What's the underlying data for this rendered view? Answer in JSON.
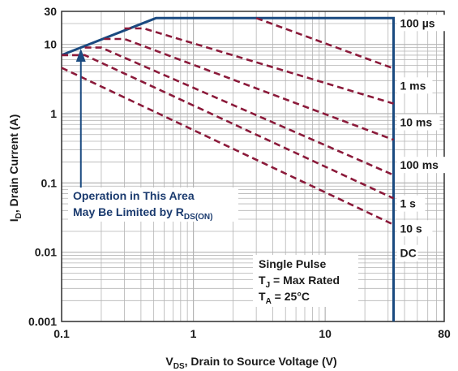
{
  "chart_data": {
    "type": "line",
    "xlabel": {
      "main": "V",
      "sub": "DS",
      "rest": ", Drain to Source Voltage (V)"
    },
    "ylabel": {
      "main": "I",
      "sub": "D",
      "rest": ", Drain Current (A)"
    },
    "x_scale": "log",
    "y_scale": "log",
    "xlim": [
      0.1,
      80
    ],
    "ylim": [
      0.001,
      30
    ],
    "x_ticks": [
      {
        "value": 0.1,
        "label": "0.1"
      },
      {
        "value": 1,
        "label": "1"
      },
      {
        "value": 10,
        "label": "10"
      },
      {
        "value": 80,
        "label": "80"
      }
    ],
    "y_ticks": [
      {
        "value": 0.001,
        "label": "0.001"
      },
      {
        "value": 0.01,
        "label": "0.01"
      },
      {
        "value": 0.1,
        "label": "0.1"
      },
      {
        "value": 1,
        "label": "1"
      },
      {
        "value": 10,
        "label": "10"
      },
      {
        "value": 30,
        "label": "30"
      }
    ],
    "grid": true,
    "series": [
      {
        "name": "100 µs",
        "style": "solid",
        "color": "#1a4a80",
        "points": [
          [
            0.1,
            7
          ],
          [
            0.52,
            24
          ],
          [
            33,
            24
          ],
          [
            33,
            0.001
          ]
        ]
      },
      {
        "name": "1 ms",
        "style": "dashed",
        "color": "#8b1a3a",
        "points": [
          [
            3,
            24
          ],
          [
            33,
            4.5
          ]
        ]
      },
      {
        "name": "10 ms",
        "style": "dashed",
        "color": "#8b1a3a",
        "points": [
          [
            0.3,
            17
          ],
          [
            0.42,
            17
          ],
          [
            33,
            1.4
          ]
        ]
      },
      {
        "name": "100 ms",
        "style": "dashed",
        "color": "#8b1a3a",
        "points": [
          [
            0.21,
            12
          ],
          [
            0.3,
            12
          ],
          [
            33,
            0.42
          ]
        ]
      },
      {
        "name": "1 s",
        "style": "dashed",
        "color": "#8b1a3a",
        "points": [
          [
            0.15,
            9
          ],
          [
            0.2,
            9
          ],
          [
            33,
            0.13
          ]
        ]
      },
      {
        "name": "10 s",
        "style": "dashed",
        "color": "#8b1a3a",
        "points": [
          [
            0.1,
            7
          ],
          [
            0.15,
            7
          ],
          [
            33,
            0.06
          ]
        ]
      },
      {
        "name": "DC",
        "style": "dashed",
        "color": "#8b1a3a",
        "points": [
          [
            0.1,
            4.6
          ],
          [
            33,
            0.025
          ]
        ]
      }
    ],
    "annotations": {
      "limit_line1": "Operation in This Area",
      "limit_line2_main": "May Be Limited by R",
      "limit_line2_sub": "DS(ON)",
      "note_line1": "Single Pulse",
      "note_line2_main": "T",
      "note_line2_sub": "J",
      "note_line2_rest": " = Max Rated",
      "note_line3_main": "T",
      "note_line3_sub": "A",
      "note_line3_rest": " = 25°C"
    },
    "colors": {
      "solid_line": "#1a4a80",
      "dashed_line": "#8b1a3a",
      "grid": "#b4b4b4",
      "frame": "#333333"
    }
  }
}
